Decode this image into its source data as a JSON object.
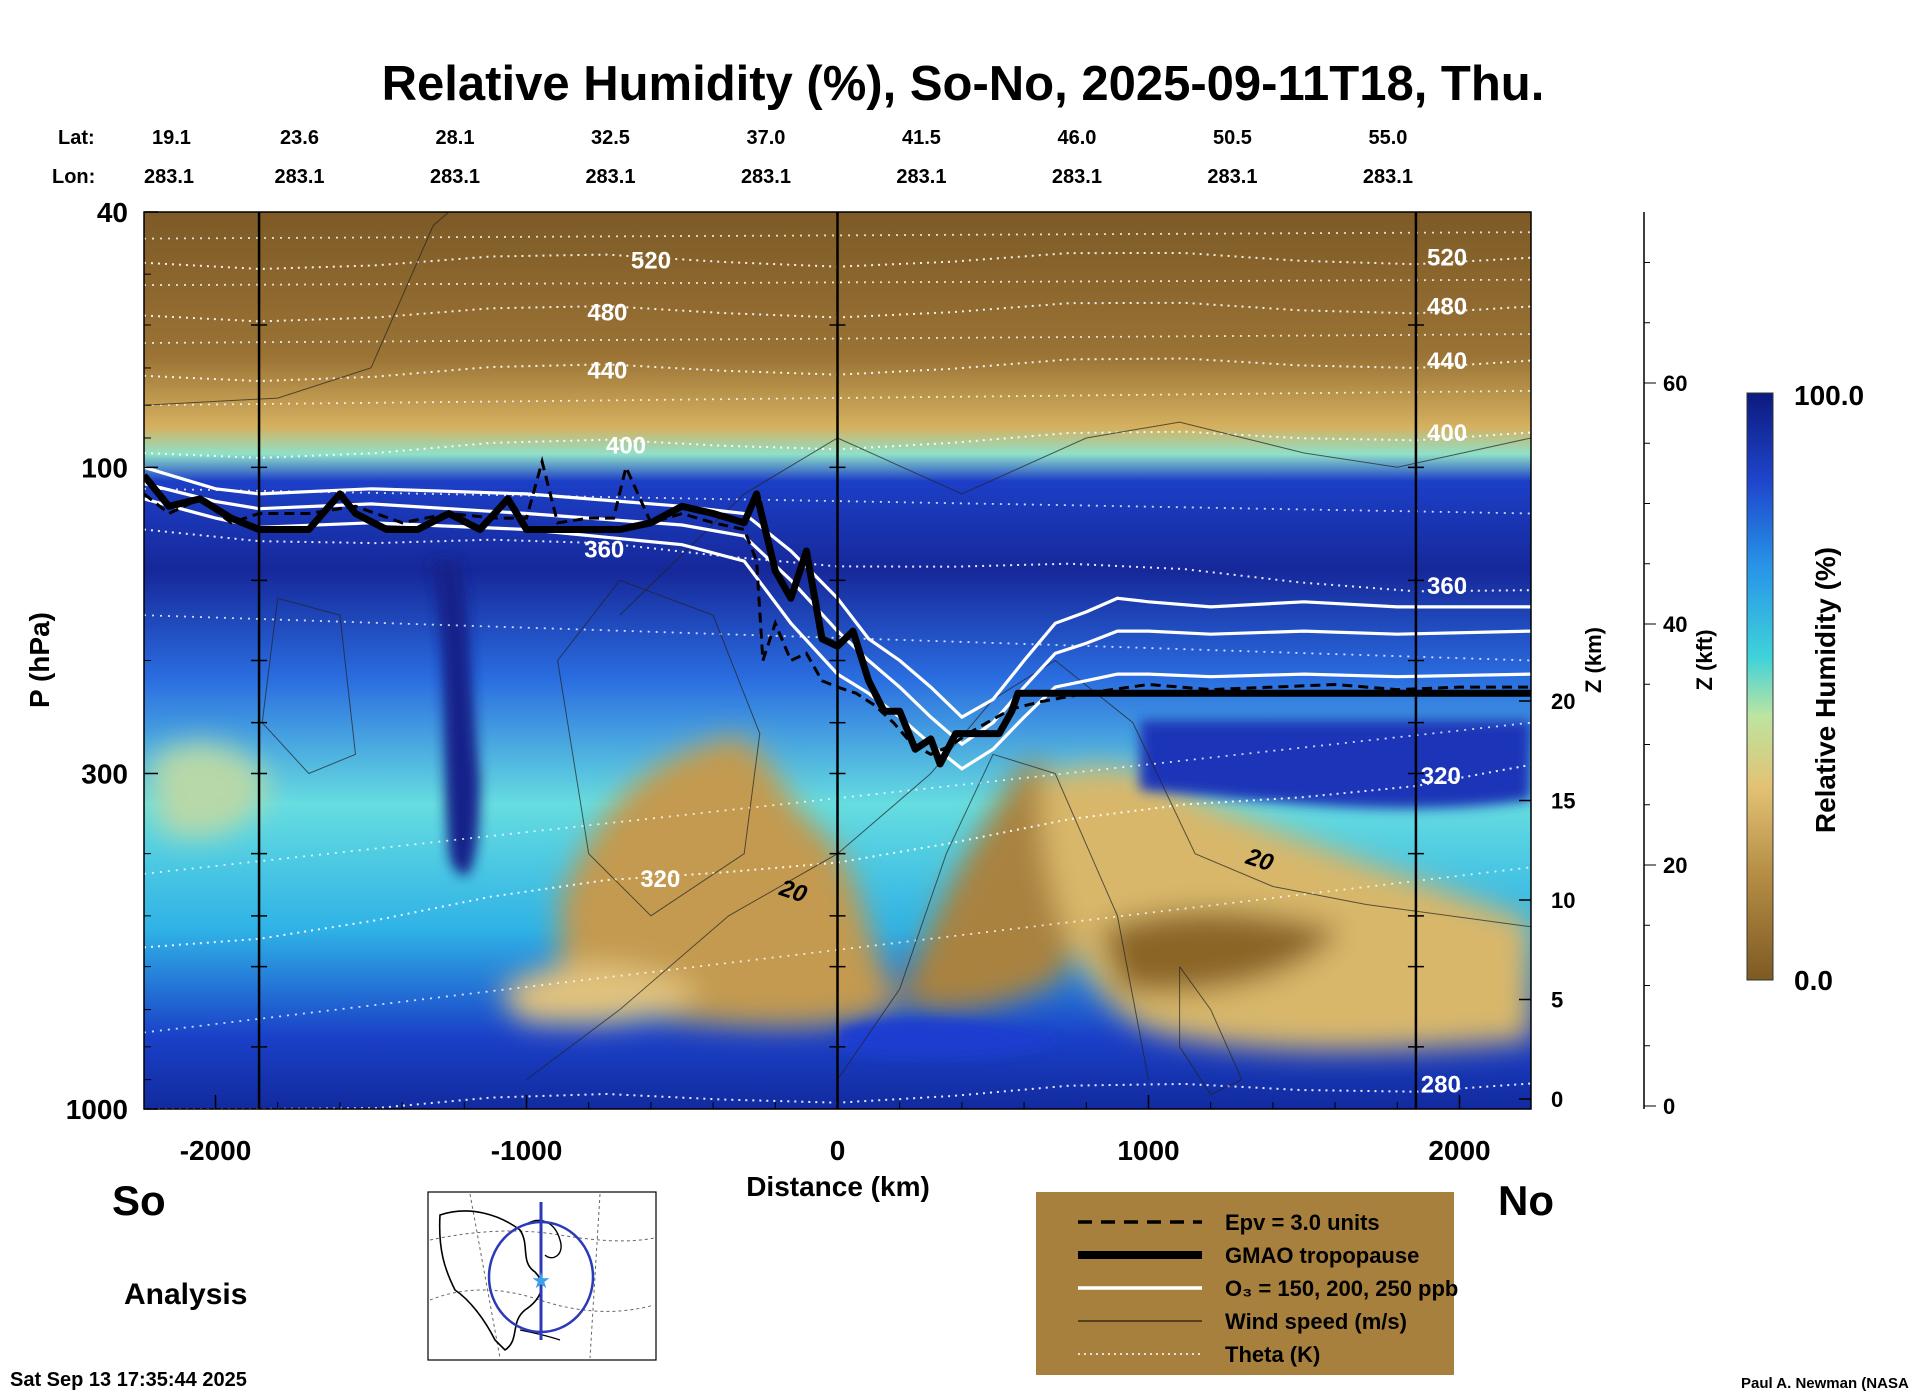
{
  "chart_data": {
    "type": "heatmap",
    "title": "Relative Humidity (%), So-No, 2025-09-11T18, Thu.",
    "xlabel": "Distance (km)",
    "ylabel": "P (hPa)",
    "z_km_label": "Z (km)",
    "z_kft_label": "Z (kft)",
    "colorbar_label": "Relative Humidity (%)",
    "colorbar_min_label": "0.0",
    "colorbar_max_label": "100.0",
    "colorbar_range": [
      0,
      100
    ],
    "x_range": [
      -2230,
      2230
    ],
    "x_ticks": [
      {
        "v": -2000,
        "label": "-2000"
      },
      {
        "v": -1000,
        "label": "-1000"
      },
      {
        "v": 0,
        "label": "0"
      },
      {
        "v": 1000,
        "label": "1000"
      },
      {
        "v": 2000,
        "label": "2000"
      }
    ],
    "p_range": [
      40,
      1000
    ],
    "p_ticks": [
      {
        "v": 40,
        "label": "40"
      },
      {
        "v": 100,
        "label": "100"
      },
      {
        "v": 300,
        "label": "300"
      },
      {
        "v": 1000,
        "label": "1000"
      }
    ],
    "z_km_ticks": [
      {
        "v": 0,
        "label": "0"
      },
      {
        "v": 5,
        "label": "5"
      },
      {
        "v": 10,
        "label": "10"
      },
      {
        "v": 15,
        "label": "15"
      },
      {
        "v": 20,
        "label": "20"
      }
    ],
    "z_kft_ticks": [
      {
        "v": 0,
        "label": "0"
      },
      {
        "v": 20,
        "label": "20"
      },
      {
        "v": 40,
        "label": "40"
      },
      {
        "v": 60,
        "label": "60"
      }
    ],
    "lat_label": "Lat:",
    "lon_label": "Lon:",
    "location_ticks": [
      {
        "x": -2230,
        "lat": "19.1",
        "lon": "283.1"
      },
      {
        "x": -1730,
        "lat": "23.6",
        "lon": "283.1"
      },
      {
        "x": -1230,
        "lat": "28.1",
        "lon": "283.1"
      },
      {
        "x": -730,
        "lat": "32.5",
        "lon": "283.1"
      },
      {
        "x": -230,
        "lat": "37.0",
        "lon": "283.1"
      },
      {
        "x": 270,
        "lat": "41.5",
        "lon": "283.1"
      },
      {
        "x": 770,
        "lat": "46.0",
        "lon": "283.1"
      },
      {
        "x": 1270,
        "lat": "50.5",
        "lon": "283.1"
      },
      {
        "x": 1770,
        "lat": "55.0",
        "lon": "283.1"
      }
    ],
    "vertical_markers_km": [
      -1860,
      0,
      1860
    ],
    "tropopause": {
      "name": "GMAO tropopause",
      "x": [
        -2230,
        -2150,
        -2050,
        -1950,
        -1860,
        -1700,
        -1600,
        -1550,
        -1450,
        -1350,
        -1250,
        -1150,
        -1060,
        -1000,
        -900,
        -800,
        -700,
        -600,
        -500,
        -400,
        -300,
        -260,
        -200,
        -150,
        -100,
        -50,
        0,
        50,
        100,
        150,
        200,
        250,
        300,
        330,
        380,
        420,
        480,
        520,
        560,
        580,
        700,
        900,
        1100,
        1300,
        1500,
        1700,
        1900,
        2230
      ],
      "p": [
        103,
        115,
        112,
        120,
        125,
        125,
        110,
        118,
        125,
        125,
        118,
        125,
        112,
        125,
        125,
        125,
        125,
        122,
        115,
        118,
        122,
        110,
        145,
        160,
        135,
        185,
        190,
        180,
        215,
        240,
        240,
        275,
        265,
        290,
        260,
        260,
        260,
        260,
        240,
        225,
        225,
        225,
        225,
        225,
        225,
        225,
        225,
        225
      ]
    },
    "epv": {
      "name": "Epv = 3.0 units",
      "x": [
        -2230,
        -2150,
        -2050,
        -1950,
        -1860,
        -1700,
        -1550,
        -1400,
        -1250,
        -1100,
        -1000,
        -950,
        -900,
        -800,
        -720,
        -680,
        -600,
        -500,
        -400,
        -300,
        -260,
        -240,
        -200,
        -150,
        -100,
        -50,
        0,
        60,
        120,
        180,
        240,
        300,
        360,
        420,
        480,
        560,
        650,
        800,
        1000,
        1200,
        1400,
        1600,
        1800,
        2000,
        2230
      ],
      "p": [
        110,
        118,
        112,
        122,
        118,
        118,
        115,
        122,
        118,
        120,
        120,
        98,
        122,
        120,
        120,
        100,
        122,
        118,
        122,
        125,
        140,
        200,
        175,
        200,
        195,
        215,
        220,
        225,
        235,
        250,
        270,
        280,
        272,
        260,
        250,
        238,
        232,
        225,
        218,
        222,
        220,
        218,
        222,
        220,
        220
      ]
    },
    "ozone": {
      "name": "O₃ = 150, 200, 250 ppb",
      "lines": [
        {
          "x": [
            -2230,
            -2000,
            -1860,
            -1500,
            -1000,
            -500,
            -300,
            -150,
            0,
            100,
            200,
            300,
            400,
            500,
            600,
            700,
            800,
            900,
            1000,
            1200,
            1500,
            1800,
            2230
          ],
          "p": [
            100,
            108,
            110,
            108,
            110,
            115,
            118,
            135,
            160,
            185,
            200,
            220,
            245,
            230,
            200,
            175,
            168,
            160,
            162,
            165,
            162,
            165,
            165
          ]
        },
        {
          "x": [
            -2230,
            -2000,
            -1860,
            -1500,
            -1000,
            -500,
            -300,
            -150,
            0,
            100,
            200,
            300,
            400,
            500,
            600,
            700,
            800,
            900,
            1000,
            1200,
            1500,
            1800,
            2230
          ],
          "p": [
            106,
            113,
            116,
            114,
            118,
            123,
            128,
            150,
            180,
            200,
            220,
            245,
            270,
            250,
            220,
            195,
            188,
            180,
            180,
            182,
            180,
            182,
            180
          ]
        },
        {
          "x": [
            -2230,
            -2000,
            -1860,
            -1500,
            -1000,
            -500,
            -300,
            -150,
            0,
            100,
            200,
            300,
            400,
            500,
            600,
            700,
            800,
            900,
            1000,
            1200,
            1500,
            1800,
            2230
          ],
          "p": [
            112,
            120,
            124,
            122,
            125,
            132,
            140,
            175,
            210,
            225,
            245,
            270,
            295,
            275,
            245,
            220,
            215,
            210,
            210,
            212,
            210,
            212,
            210
          ]
        }
      ]
    },
    "theta_contours": [
      {
        "label": "520",
        "p": [
          48,
          47
        ]
      },
      {
        "label": "480",
        "p": [
          58,
          56
        ]
      },
      {
        "label": "440",
        "p": [
          72,
          68
        ]
      },
      {
        "label": "400",
        "p": [
          95,
          88
        ]
      },
      {
        "label": "360",
        "p": [
          125,
          155
        ]
      },
      {
        "label": "320",
        "p": [
          560,
          290
        ]
      },
      {
        "label": "280",
        "p": [
          1000,
          910
        ]
      }
    ],
    "wind_contour_label": "20",
    "legend": [
      {
        "style": "dashed",
        "label": "Epv = 3.0 units"
      },
      {
        "style": "thick",
        "label": "GMAO tropopause"
      },
      {
        "style": "white",
        "label": "O₃ = 150, 200, 250 ppb"
      },
      {
        "style": "thin",
        "label": "Wind speed (m/s)"
      },
      {
        "style": "dotted",
        "label": "Theta (K)"
      }
    ],
    "legend_placement": "bottom-right"
  },
  "footer": {
    "left_endpoint": "So",
    "right_endpoint": "No",
    "analysis_label": "Analysis",
    "timestamp": "Sat Sep 13 17:35:44 2025",
    "credit": "Paul A. Newman (NASA"
  },
  "colors": {
    "rh_low": "#7e5a24",
    "rh_mid": "#e3c275",
    "rh_cyan": "#3fd2da",
    "rh_blue": "#1f45cc",
    "rh_high": "#0c1a7e",
    "legend_bg": "#a8803e"
  }
}
